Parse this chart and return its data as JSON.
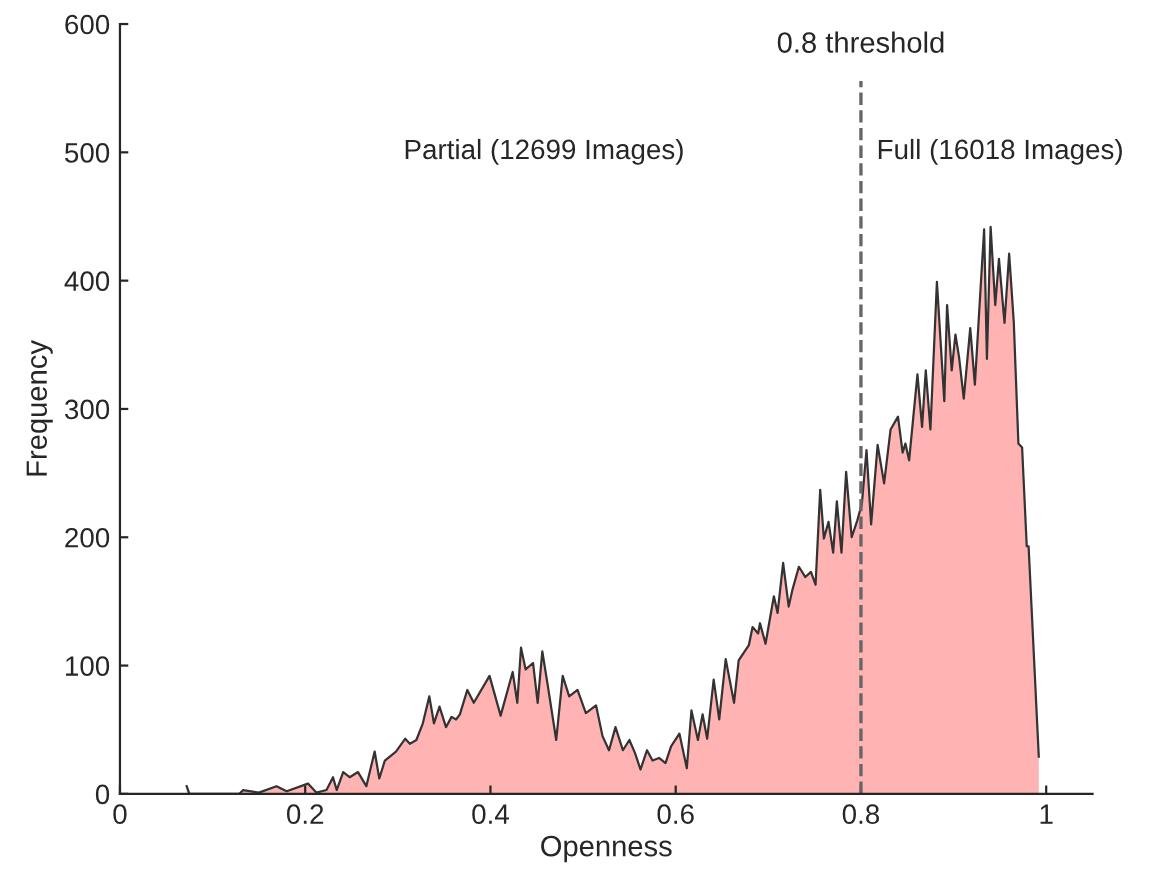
{
  "chart_data": {
    "type": "area",
    "xlabel": "Openness",
    "ylabel": "Frequency",
    "x": [
      0.072,
      0.075,
      0.129,
      0.133,
      0.15,
      0.169,
      0.18,
      0.203,
      0.212,
      0.223,
      0.23,
      0.234,
      0.241,
      0.248,
      0.257,
      0.266,
      0.275,
      0.28,
      0.286,
      0.298,
      0.308,
      0.313,
      0.32,
      0.327,
      0.334,
      0.339,
      0.345,
      0.352,
      0.358,
      0.363,
      0.367,
      0.375,
      0.382,
      0.399,
      0.411,
      0.424,
      0.429,
      0.433,
      0.438,
      0.446,
      0.451,
      0.456,
      0.462,
      0.471,
      0.478,
      0.485,
      0.494,
      0.503,
      0.514,
      0.521,
      0.528,
      0.535,
      0.543,
      0.55,
      0.556,
      0.562,
      0.569,
      0.575,
      0.582,
      0.589,
      0.595,
      0.604,
      0.612,
      0.617,
      0.624,
      0.629,
      0.634,
      0.641,
      0.647,
      0.654,
      0.663,
      0.668,
      0.679,
      0.683,
      0.689,
      0.691,
      0.697,
      0.706,
      0.71,
      0.716,
      0.722,
      0.726,
      0.733,
      0.74,
      0.746,
      0.751,
      0.756,
      0.76,
      0.765,
      0.77,
      0.774,
      0.779,
      0.784,
      0.79,
      0.796,
      0.801,
      0.806,
      0.811,
      0.818,
      0.825,
      0.832,
      0.84,
      0.845,
      0.848,
      0.852,
      0.861,
      0.866,
      0.87,
      0.875,
      0.882,
      0.89,
      0.893,
      0.898,
      0.902,
      0.906,
      0.911,
      0.918,
      0.923,
      0.927,
      0.933,
      0.936,
      0.94,
      0.945,
      0.949,
      0.955,
      0.96,
      0.965,
      0.97,
      0.974,
      0.979,
      0.981,
      0.992
    ],
    "series": [
      {
        "color": "#ffb3b3",
        "values": [
          6,
          0,
          0,
          3,
          1,
          6,
          2,
          8,
          1,
          3,
          13,
          3,
          17,
          13,
          17,
          6,
          33,
          12,
          26,
          33,
          43,
          39,
          42,
          55,
          76,
          55,
          68,
          52,
          60,
          58,
          62,
          81,
          71,
          92,
          61,
          95,
          71,
          114,
          97,
          102,
          71,
          111,
          84,
          42,
          92,
          76,
          81,
          63,
          69,
          45,
          34,
          52,
          34,
          42,
          32,
          19,
          34,
          26,
          28,
          24,
          37,
          47,
          20,
          65,
          42,
          62,
          43,
          89,
          58,
          105,
          71,
          104,
          116,
          130,
          125,
          133,
          117,
          154,
          141,
          180,
          146,
          159,
          177,
          169,
          173,
          163,
          237,
          199,
          212,
          188,
          228,
          188,
          251,
          200,
          213,
          226,
          268,
          210,
          272,
          242,
          284,
          294,
          266,
          273,
          260,
          327,
          286,
          330,
          284,
          399,
          306,
          381,
          330,
          358,
          340,
          308,
          363,
          319,
          368,
          440,
          339,
          442,
          381,
          417,
          367,
          421,
          368,
          273,
          270,
          193,
          193,
          29
        ]
      }
    ],
    "xlim": [
      0,
      1.05
    ],
    "ylim": [
      0,
      600
    ],
    "xticks": [
      0,
      0.2,
      0.4,
      0.6,
      0.8,
      1
    ],
    "yticks": [
      0,
      100,
      200,
      300,
      400,
      500,
      600
    ],
    "ref_lines": [
      {
        "axis": "x",
        "value": 0.8,
        "label": "0.8 threshold",
        "color": "#666666",
        "line_style": "dashed"
      }
    ],
    "annotations": [
      "Partial (12699 Images)",
      "Full (16018 Images)"
    ],
    "grid": false,
    "legend": false
  }
}
